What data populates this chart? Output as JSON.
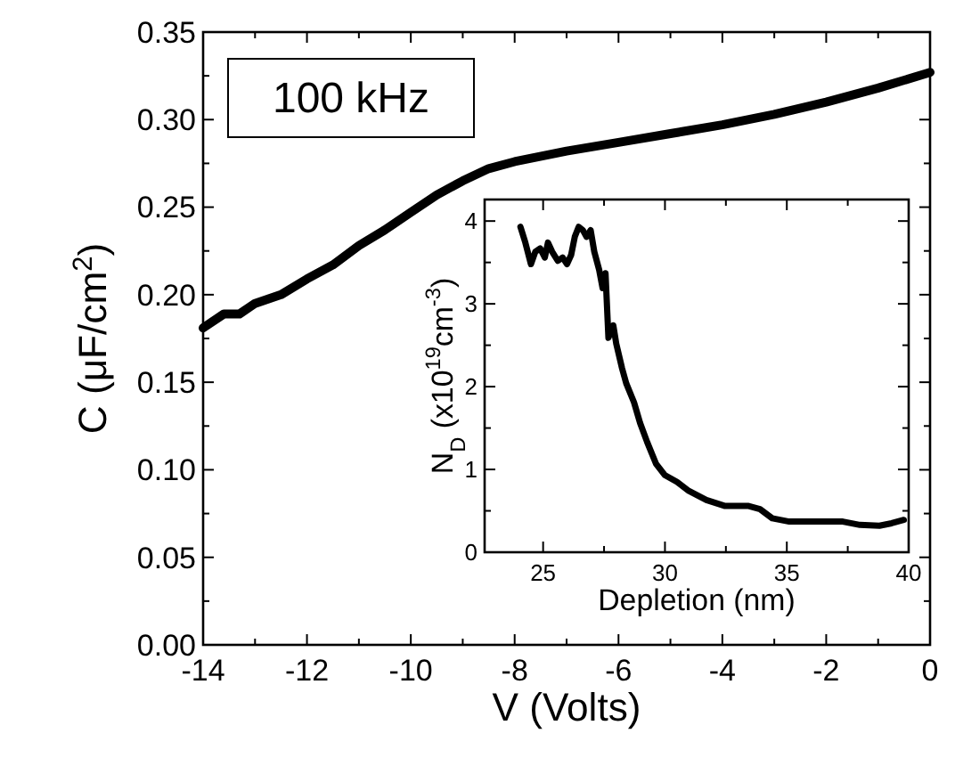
{
  "chart_data": [
    {
      "type": "line",
      "xlabel": "V (Volts)",
      "ylabel": "C (μF/cm$^{2}$)",
      "annotations": [
        "100 kHz"
      ],
      "xlim": [
        -14,
        0
      ],
      "ylim": [
        0,
        0.35
      ],
      "xticks": [
        -14,
        -12,
        -10,
        -8,
        -6,
        -4,
        -2,
        0
      ],
      "yticks": [
        {
          "value": 0,
          "label": "0.00"
        },
        {
          "value": 0.05,
          "label": "0.05"
        },
        {
          "value": 0.1,
          "label": "0.10"
        },
        {
          "value": 0.15,
          "label": "0.15"
        },
        {
          "value": 0.2,
          "label": "0.20"
        },
        {
          "value": 0.25,
          "label": "0.25"
        },
        {
          "value": 0.3,
          "label": "0.30"
        },
        {
          "value": 0.35,
          "label": "0.35"
        }
      ],
      "grid": false,
      "line_style": "solid",
      "series": [
        {
          "color": "#000000",
          "x": [
            -14,
            -13.6,
            -13.3,
            -13,
            -12.5,
            -12,
            -11.5,
            -11,
            -10.5,
            -10,
            -9.5,
            -9,
            -8.5,
            -8,
            -7,
            -6,
            -5,
            -4,
            -3,
            -2,
            -1,
            0
          ],
          "values": [
            0.181,
            0.189,
            0.189,
            0.195,
            0.2,
            0.209,
            0.217,
            0.228,
            0.237,
            0.247,
            0.257,
            0.265,
            0.272,
            0.276,
            0.282,
            0.287,
            0.292,
            0.297,
            0.303,
            0.31,
            0.318,
            0.327
          ]
        }
      ]
    },
    {
      "type": "line",
      "xlabel": "Depletion (nm)",
      "ylabel": "N$_{D}$ (x10$^{19}$cm$^{-3}$)",
      "xlim": [
        22.6,
        40
      ],
      "ylim": [
        0,
        4.26
      ],
      "xticks": [
        25,
        30,
        35,
        40
      ],
      "yticks": [
        0,
        1,
        2,
        3,
        4
      ],
      "grid": false,
      "line_style": "solid",
      "series": [
        {
          "color": "#000000",
          "x": [
            24.07,
            24.27,
            24.5,
            24.68,
            24.88,
            25.07,
            25.2,
            25.37,
            25.6,
            25.8,
            25.98,
            26.15,
            26.3,
            26.46,
            26.63,
            26.78,
            26.95,
            27.1,
            27.3,
            27.44,
            27.56,
            27.68,
            27.88,
            28.0,
            28.24,
            28.41,
            28.73,
            28.98,
            29.27,
            29.63,
            30.0,
            30.49,
            30.98,
            31.7,
            32.44,
            33.4,
            33.9,
            34.4,
            35.1,
            36.3,
            37.3,
            38.0,
            38.8,
            39.3,
            39.8
          ],
          "values": [
            3.93,
            3.74,
            3.48,
            3.63,
            3.67,
            3.56,
            3.74,
            3.63,
            3.52,
            3.56,
            3.48,
            3.59,
            3.81,
            3.93,
            3.89,
            3.81,
            3.89,
            3.63,
            3.41,
            3.19,
            3.37,
            2.59,
            2.74,
            2.52,
            2.22,
            2.04,
            1.81,
            1.56,
            1.33,
            1.07,
            0.93,
            0.85,
            0.74,
            0.63,
            0.56,
            0.56,
            0.52,
            0.41,
            0.37,
            0.37,
            0.37,
            0.33,
            0.32,
            0.35,
            0.39
          ]
        }
      ]
    }
  ]
}
